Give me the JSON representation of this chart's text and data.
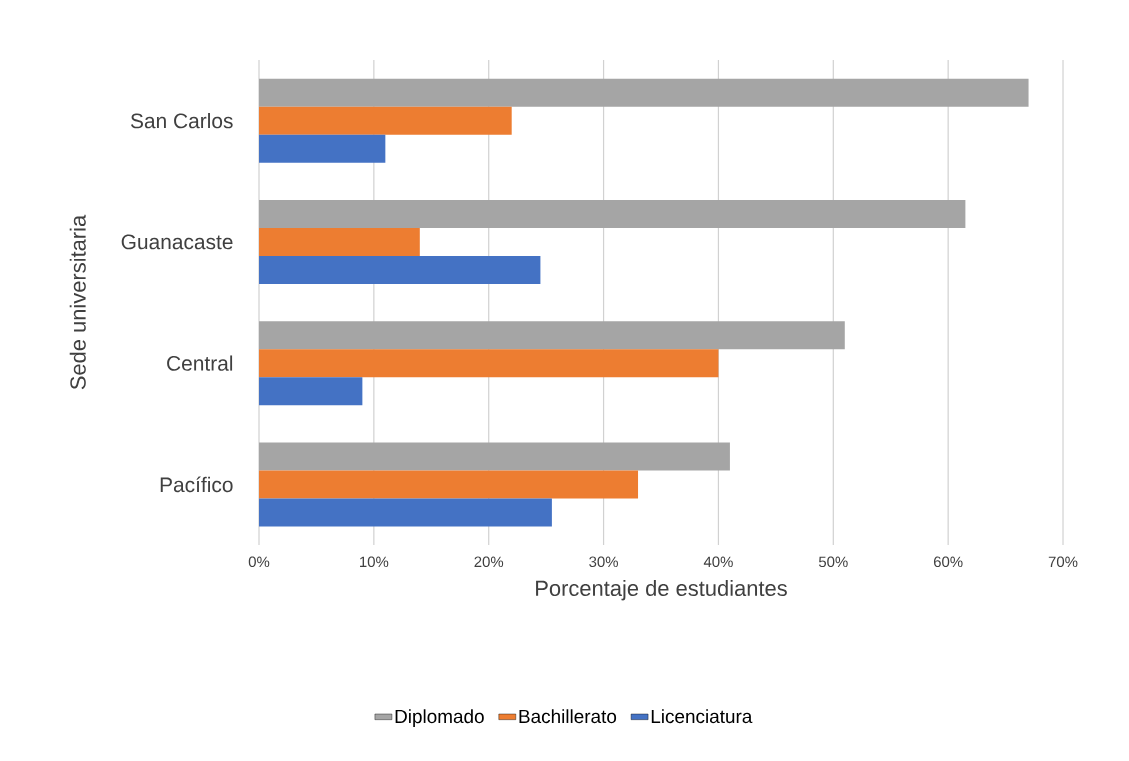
{
  "chart_data": {
    "type": "bar",
    "orientation": "horizontal",
    "xlabel": "Porcentaje de estudiantes",
    "ylabel": "Sede universitaria",
    "categories": [
      "San Carlos",
      "Guanacaste",
      "Central",
      "Pacífico"
    ],
    "series": [
      {
        "name": "Diplomado",
        "color": "#a5a5a5",
        "values": [
          67,
          61.5,
          51,
          41
        ]
      },
      {
        "name": "Bachillerato",
        "color": "#ed7d31",
        "values": [
          22,
          14,
          40,
          33
        ]
      },
      {
        "name": "Licenciatura",
        "color": "#4472c4",
        "values": [
          11,
          24.5,
          9,
          25.5
        ]
      }
    ],
    "xlim": [
      0,
      70
    ],
    "xticks": [
      {
        "value": 0,
        "label": "0%"
      },
      {
        "value": 10,
        "label": "10%"
      },
      {
        "value": 20,
        "label": "20%"
      },
      {
        "value": 30,
        "label": "30%"
      },
      {
        "value": 40,
        "label": "40%"
      },
      {
        "value": 50,
        "label": "50%"
      },
      {
        "value": 60,
        "label": "60%"
      },
      {
        "value": 70,
        "label": "70%"
      }
    ],
    "grid": "x",
    "legend": "bottom"
  }
}
